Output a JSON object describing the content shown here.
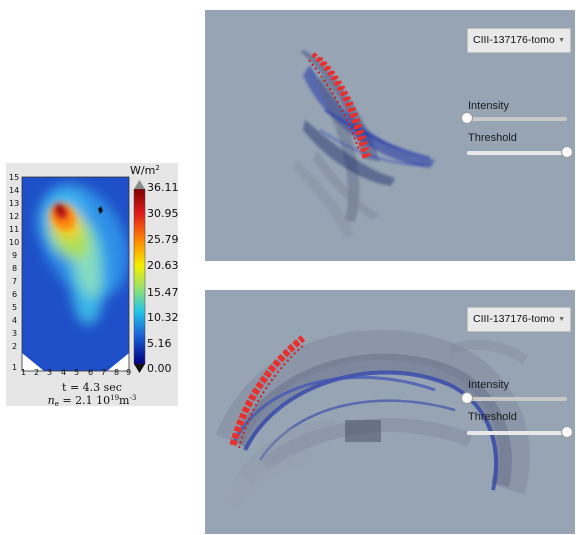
{
  "tomography": {
    "units_base": "W/m",
    "units_exp": "2",
    "y_ticks": [
      "15",
      "14",
      "13",
      "12",
      "11",
      "10",
      "9",
      "8",
      "7",
      "6",
      "5",
      "4",
      "3",
      "2",
      "1"
    ],
    "x_ticks": [
      "1",
      "2",
      "3",
      "4",
      "5",
      "6",
      "7",
      "8",
      "9"
    ],
    "colorbar_ticks": [
      "36.11",
      "30.95",
      "25.79",
      "20.63",
      "15.47",
      "10.32",
      "5.16",
      "0.00"
    ],
    "time_text": "t = 4.3 sec",
    "density_prefix": "n",
    "density_sub": "e",
    "density_mid": " = 2.1 10",
    "density_exp": "19",
    "density_unit": "m",
    "density_unit_exp": "-3"
  },
  "viewers": [
    {
      "select_value": "CIII-137176-tomo",
      "intensity_label": "Intensity",
      "threshold_label": "Threshold",
      "intensity_level": 0.0,
      "threshold_level": 1.0
    },
    {
      "select_value": "CIII-137176-tomo",
      "intensity_label": "Intensity",
      "threshold_label": "Threshold",
      "intensity_level": 0.0,
      "threshold_level": 1.0
    }
  ],
  "icons": {
    "select_arrow": "chevron-down-icon",
    "slider_handle": "slider-thumb-icon"
  },
  "colors": {
    "viewer_bg": "#96a4b4",
    "emission_red": "#e8302c",
    "emission_blue": "#2436a8"
  }
}
